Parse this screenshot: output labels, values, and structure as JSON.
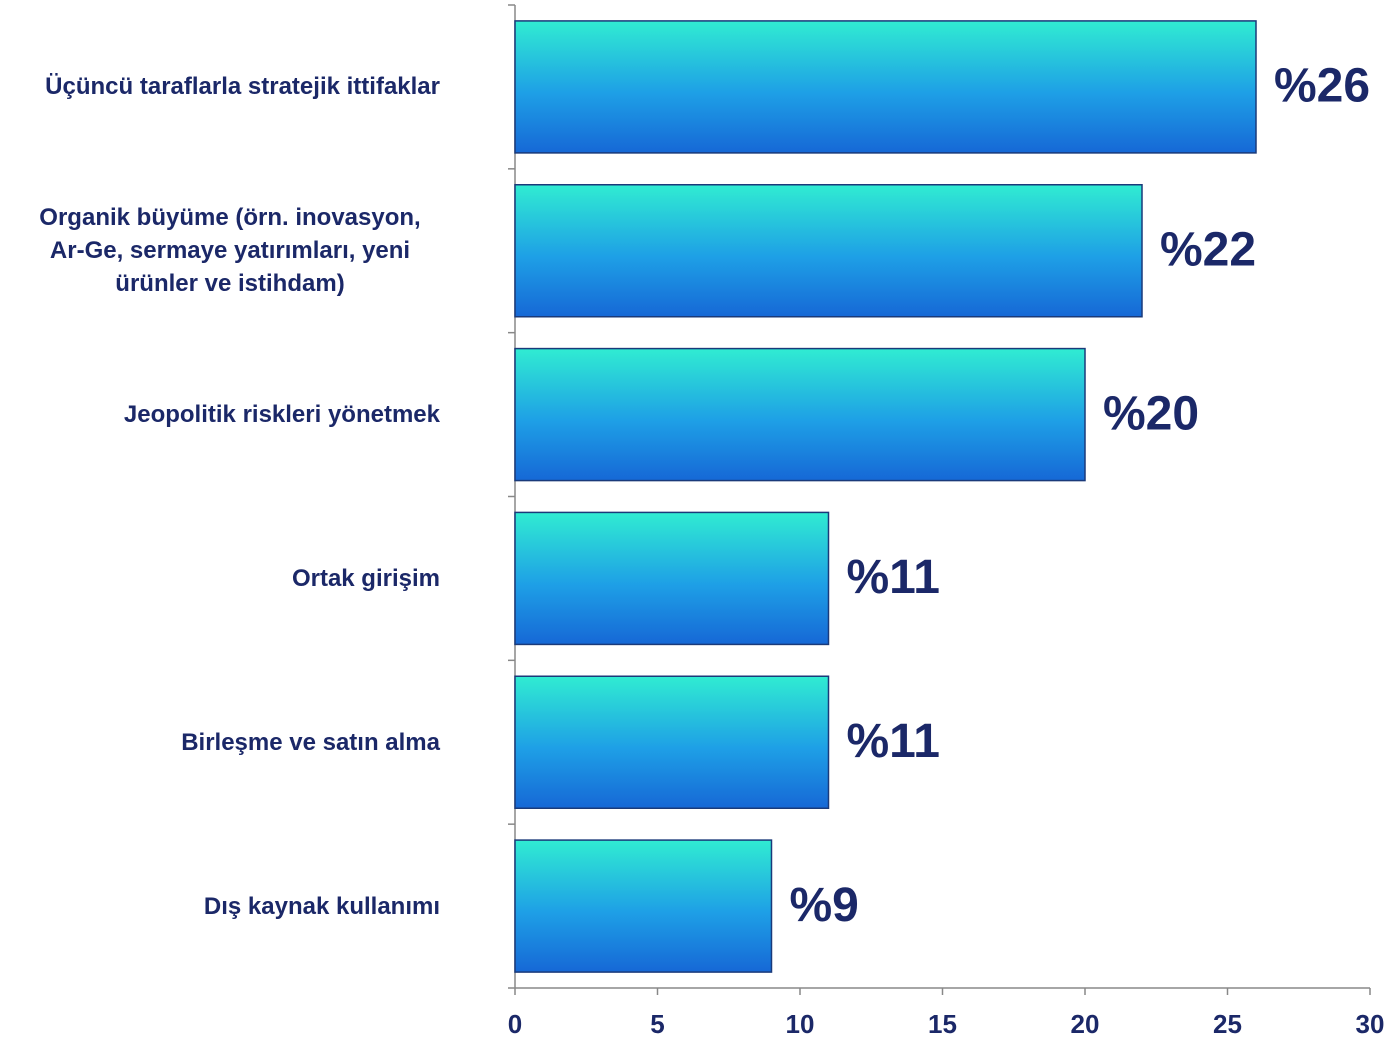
{
  "chart_data": {
    "type": "barh",
    "categories": [
      "Üçüncü taraflarla stratejik ittifaklar",
      "Organik büyüme (örn. inovasyon, Ar-Ge, sermaye yatırımları,  yeni ürünler ve istihdam)",
      "Jeopolitik riskleri yönetmek",
      "Ortak girişim",
      "Birleşme ve satın alma",
      "Dış kaynak kullanımı"
    ],
    "values": [
      26,
      22,
      20,
      11,
      11,
      9
    ],
    "value_labels": [
      "%26",
      "%22",
      "%20",
      "%11",
      "%11",
      "%9"
    ],
    "color": [
      "#30ecd2",
      "#1e9fe6",
      "#1668d6"
    ],
    "xlim": [
      0,
      30
    ],
    "xticks": [
      0,
      5,
      10,
      15,
      20,
      25,
      30
    ],
    "grid": false
  }
}
